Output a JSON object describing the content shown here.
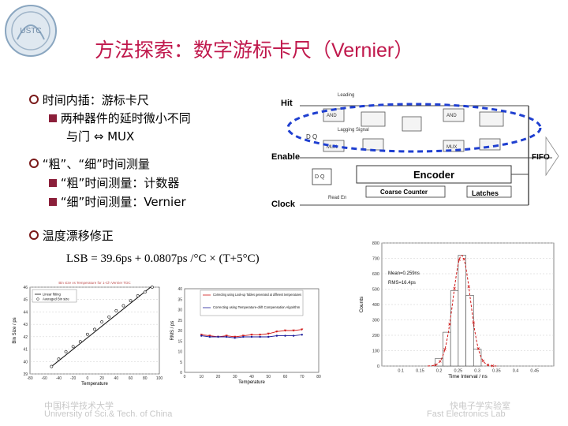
{
  "slide": {
    "title_cn": "方法探索：数字游标卡尺（",
    "title_en": "Vernier",
    "title_close": "）",
    "logo_text": "USTC"
  },
  "bullets": {
    "b1": "时间内插：游标卡尺",
    "b1_sub1": "两种器件的延时微小不同",
    "b1_sub2": "与门 ⇔  MUX",
    "b2": "“粗”、“细”时间测量",
    "b2_sub1": "“粗”时间测量：计数器",
    "b2_sub2": "“细”时间测量：Vernier",
    "b3": "温度漂移修正"
  },
  "formula": "LSB = 39.6ps + 0.0807ps /°C × (T+5°C)",
  "diagram": {
    "hit": "Hit",
    "enable": "Enable",
    "clock": "Clock",
    "leading": "Leading",
    "lagging": "Lagging Signal",
    "encoder": "Encoder",
    "coarse": "Coarse Counter",
    "latches": "Latches",
    "fifo": "FIFO",
    "read_en": "Read En",
    "and": "AND",
    "mux": "MUX",
    "dq": "D   Q"
  },
  "footer": {
    "left_cn": "中国科学技术大学",
    "left_en": "University of Sci.& Tech. of China",
    "right_cn": "快电子学实验室",
    "right_en": "Fast Electronics Lab"
  },
  "chart_data": [
    {
      "type": "line",
      "title": "Bin size vs Temperature for 1-Ch Vernier TDC",
      "xlabel": "Temperature",
      "ylabel": "Bin Size / ps",
      "xlim": [
        -80,
        100
      ],
      "ylim": [
        39,
        46
      ],
      "xticks": [
        "-80",
        "-60",
        "-40",
        "-20",
        "0",
        "20",
        "40",
        "60",
        "80",
        "100"
      ],
      "yticks": [
        "39",
        "40",
        "41",
        "42",
        "43",
        "44",
        "45",
        "46"
      ],
      "legend": [
        "Linear fitting",
        "Averaged Bin size"
      ],
      "series": [
        {
          "name": "Linear fitting",
          "x": [
            -50,
            90
          ],
          "y": [
            39.6,
            46.1
          ]
        },
        {
          "name": "Averaged Bin size",
          "x": [
            -50,
            -40,
            -30,
            -20,
            -10,
            0,
            10,
            20,
            30,
            40,
            50,
            60,
            70,
            80,
            90
          ],
          "y": [
            39.6,
            40.2,
            40.8,
            41.2,
            41.6,
            42.2,
            42.6,
            43.2,
            43.6,
            44.1,
            44.5,
            44.9,
            45.3,
            45.6,
            46.0
          ]
        }
      ]
    },
    {
      "type": "line",
      "xlabel": "Temperature",
      "ylabel": "RMS / ps",
      "xlim": [
        0,
        80
      ],
      "ylim": [
        0,
        40
      ],
      "xticks": [
        "0",
        "10",
        "20",
        "30",
        "40",
        "50",
        "60",
        "70",
        "80"
      ],
      "yticks": [
        "0",
        "5",
        "10",
        "15",
        "20",
        "25",
        "30",
        "35",
        "40"
      ],
      "legend": [
        "Correcting using Look-up Tables generated at different temperatures",
        "Correcting using Temperature-drift Compensation Algorithm"
      ],
      "series": [
        {
          "name": "Correcting using Look-up Tables generated at different temperatures",
          "x": [
            10,
            15,
            20,
            25,
            30,
            35,
            40,
            45,
            50,
            55,
            60,
            65,
            70
          ],
          "y": [
            18,
            17.5,
            17,
            17.5,
            17,
            17.5,
            18,
            18,
            18.5,
            19.5,
            20,
            20,
            20.5
          ]
        },
        {
          "name": "Correcting using Temperature-drift Compensation Algorithm",
          "x": [
            10,
            15,
            20,
            25,
            30,
            35,
            40,
            45,
            50,
            55,
            60,
            65,
            70
          ],
          "y": [
            17.5,
            17,
            17,
            17,
            16.5,
            17,
            17,
            17,
            17,
            17.5,
            17.5,
            17.5,
            18
          ]
        }
      ]
    },
    {
      "type": "bar",
      "xlabel": "Time Interval / ns",
      "ylabel": "Counts",
      "xlim": [
        0.05,
        0.5
      ],
      "ylim": [
        0,
        800
      ],
      "xticks": [
        "0.1",
        "0.15",
        "0.2",
        "0.25",
        "0.3",
        "0.35",
        "0.4",
        "0.45"
      ],
      "yticks": [
        "0",
        "100",
        "200",
        "300",
        "400",
        "500",
        "600",
        "700",
        "800"
      ],
      "annotations": [
        "Mean=0.259ns",
        "RMS=16.4ps"
      ],
      "x": [
        0.2,
        0.22,
        0.24,
        0.26,
        0.28,
        0.3
      ],
      "values": [
        50,
        220,
        490,
        720,
        460,
        110
      ]
    }
  ]
}
